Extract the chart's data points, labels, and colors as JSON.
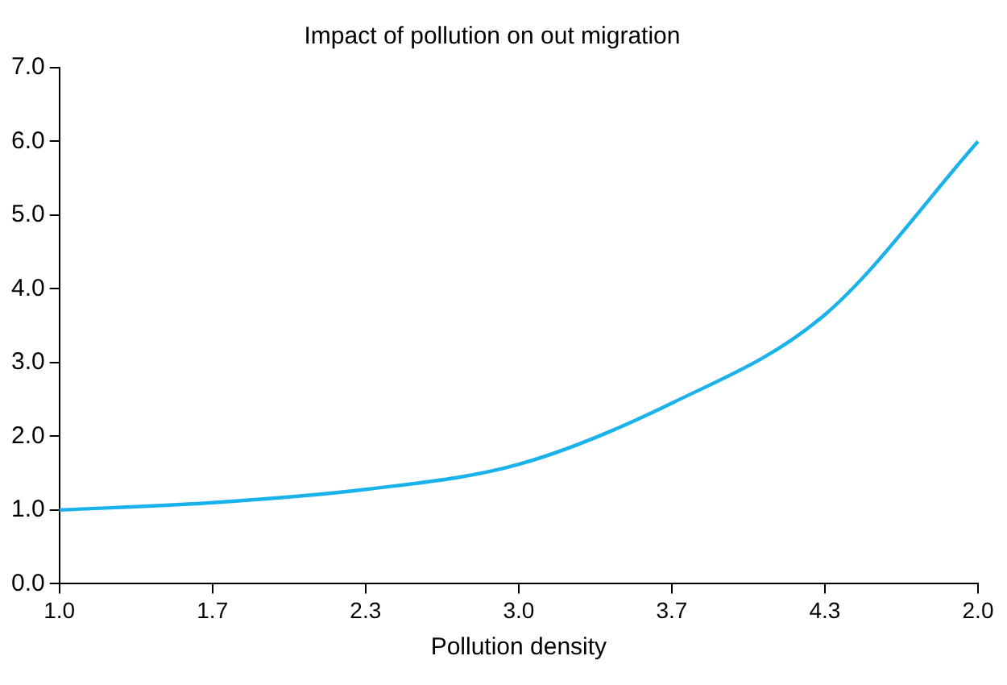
{
  "chart_data": {
    "type": "line",
    "title": "Impact of pollution on out migration",
    "xlabel": "Pollution density",
    "categories": [
      "1.0",
      "1.7",
      "2.3",
      "3.0",
      "3.7",
      "4.3",
      "2.0"
    ],
    "series": [
      {
        "color": "#1ab2ea",
        "values": [
          1.0,
          1.1,
          1.28,
          1.62,
          2.45,
          3.65,
          6.0
        ]
      }
    ],
    "ylim": [
      0,
      7
    ],
    "yticks": [
      {
        "value": 0,
        "label": "0.0"
      },
      {
        "value": 1,
        "label": "1.0"
      },
      {
        "value": 2,
        "label": "2.0"
      },
      {
        "value": 3,
        "label": "3.0"
      },
      {
        "value": 4,
        "label": "4.0"
      },
      {
        "value": 5,
        "label": "5.0"
      },
      {
        "value": 6,
        "label": "6.0"
      },
      {
        "value": 7,
        "label": "7.0"
      }
    ],
    "grid": false,
    "legend": false,
    "marker": "none",
    "line_style": "solid"
  }
}
